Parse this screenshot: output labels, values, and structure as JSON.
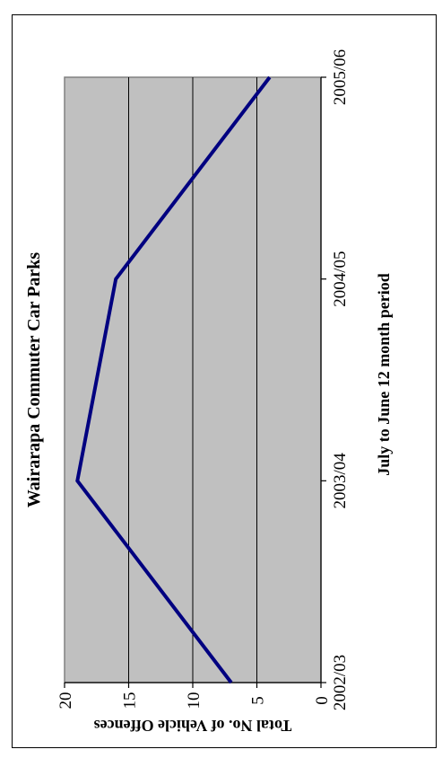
{
  "chart_data": {
    "type": "line",
    "title": "Wairarapa Commuter Car Parks",
    "xlabel": "July to June 12 month period",
    "ylabel": "Total No. of Vehicle Offences",
    "categories": [
      "2002/03",
      "2003/04",
      "2004/05",
      "2005/06"
    ],
    "series": [
      {
        "values": [
          7,
          19,
          16,
          4
        ]
      }
    ],
    "ylim": [
      0,
      20
    ],
    "yticks": [
      0,
      5,
      10,
      15,
      20
    ],
    "grid": true,
    "legend": "none",
    "orientation": "rotated 90° clockwise",
    "colors": {
      "plot_bg": "#c0c0c0",
      "line": "#000080",
      "grid": "#000000"
    }
  }
}
